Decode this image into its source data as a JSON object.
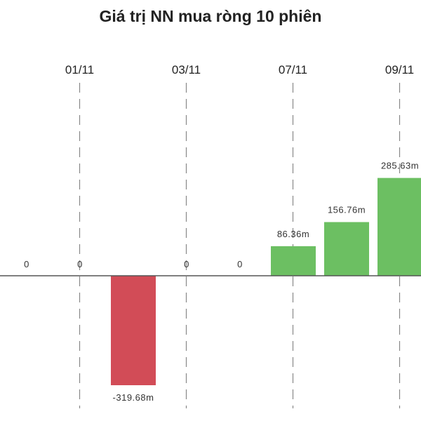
{
  "chart_data": {
    "type": "bar",
    "title": "Giá trị NN mua ròng 10 phiên",
    "xlabel": "",
    "ylabel": "",
    "x_tick_labels": [
      "01/11",
      "03/11",
      "07/11",
      "09/11"
    ],
    "bars": [
      {
        "value": 0,
        "label": "0"
      },
      {
        "value": 0,
        "label": "0"
      },
      {
        "value": -319.68,
        "label": "-319.68m"
      },
      {
        "value": 0,
        "label": "0"
      },
      {
        "value": 0,
        "label": "0"
      },
      {
        "value": 86.36,
        "label": "86.36m"
      },
      {
        "value": 156.76,
        "label": "156.76m"
      },
      {
        "value": 285.63,
        "label": "285.63m"
      }
    ],
    "unit": "m",
    "colors": {
      "positive": "#6cbf62",
      "negative": "#d24c57",
      "axis": "#555555",
      "grid": "#888888"
    },
    "grid": "vertical dashed",
    "legend": "none"
  }
}
